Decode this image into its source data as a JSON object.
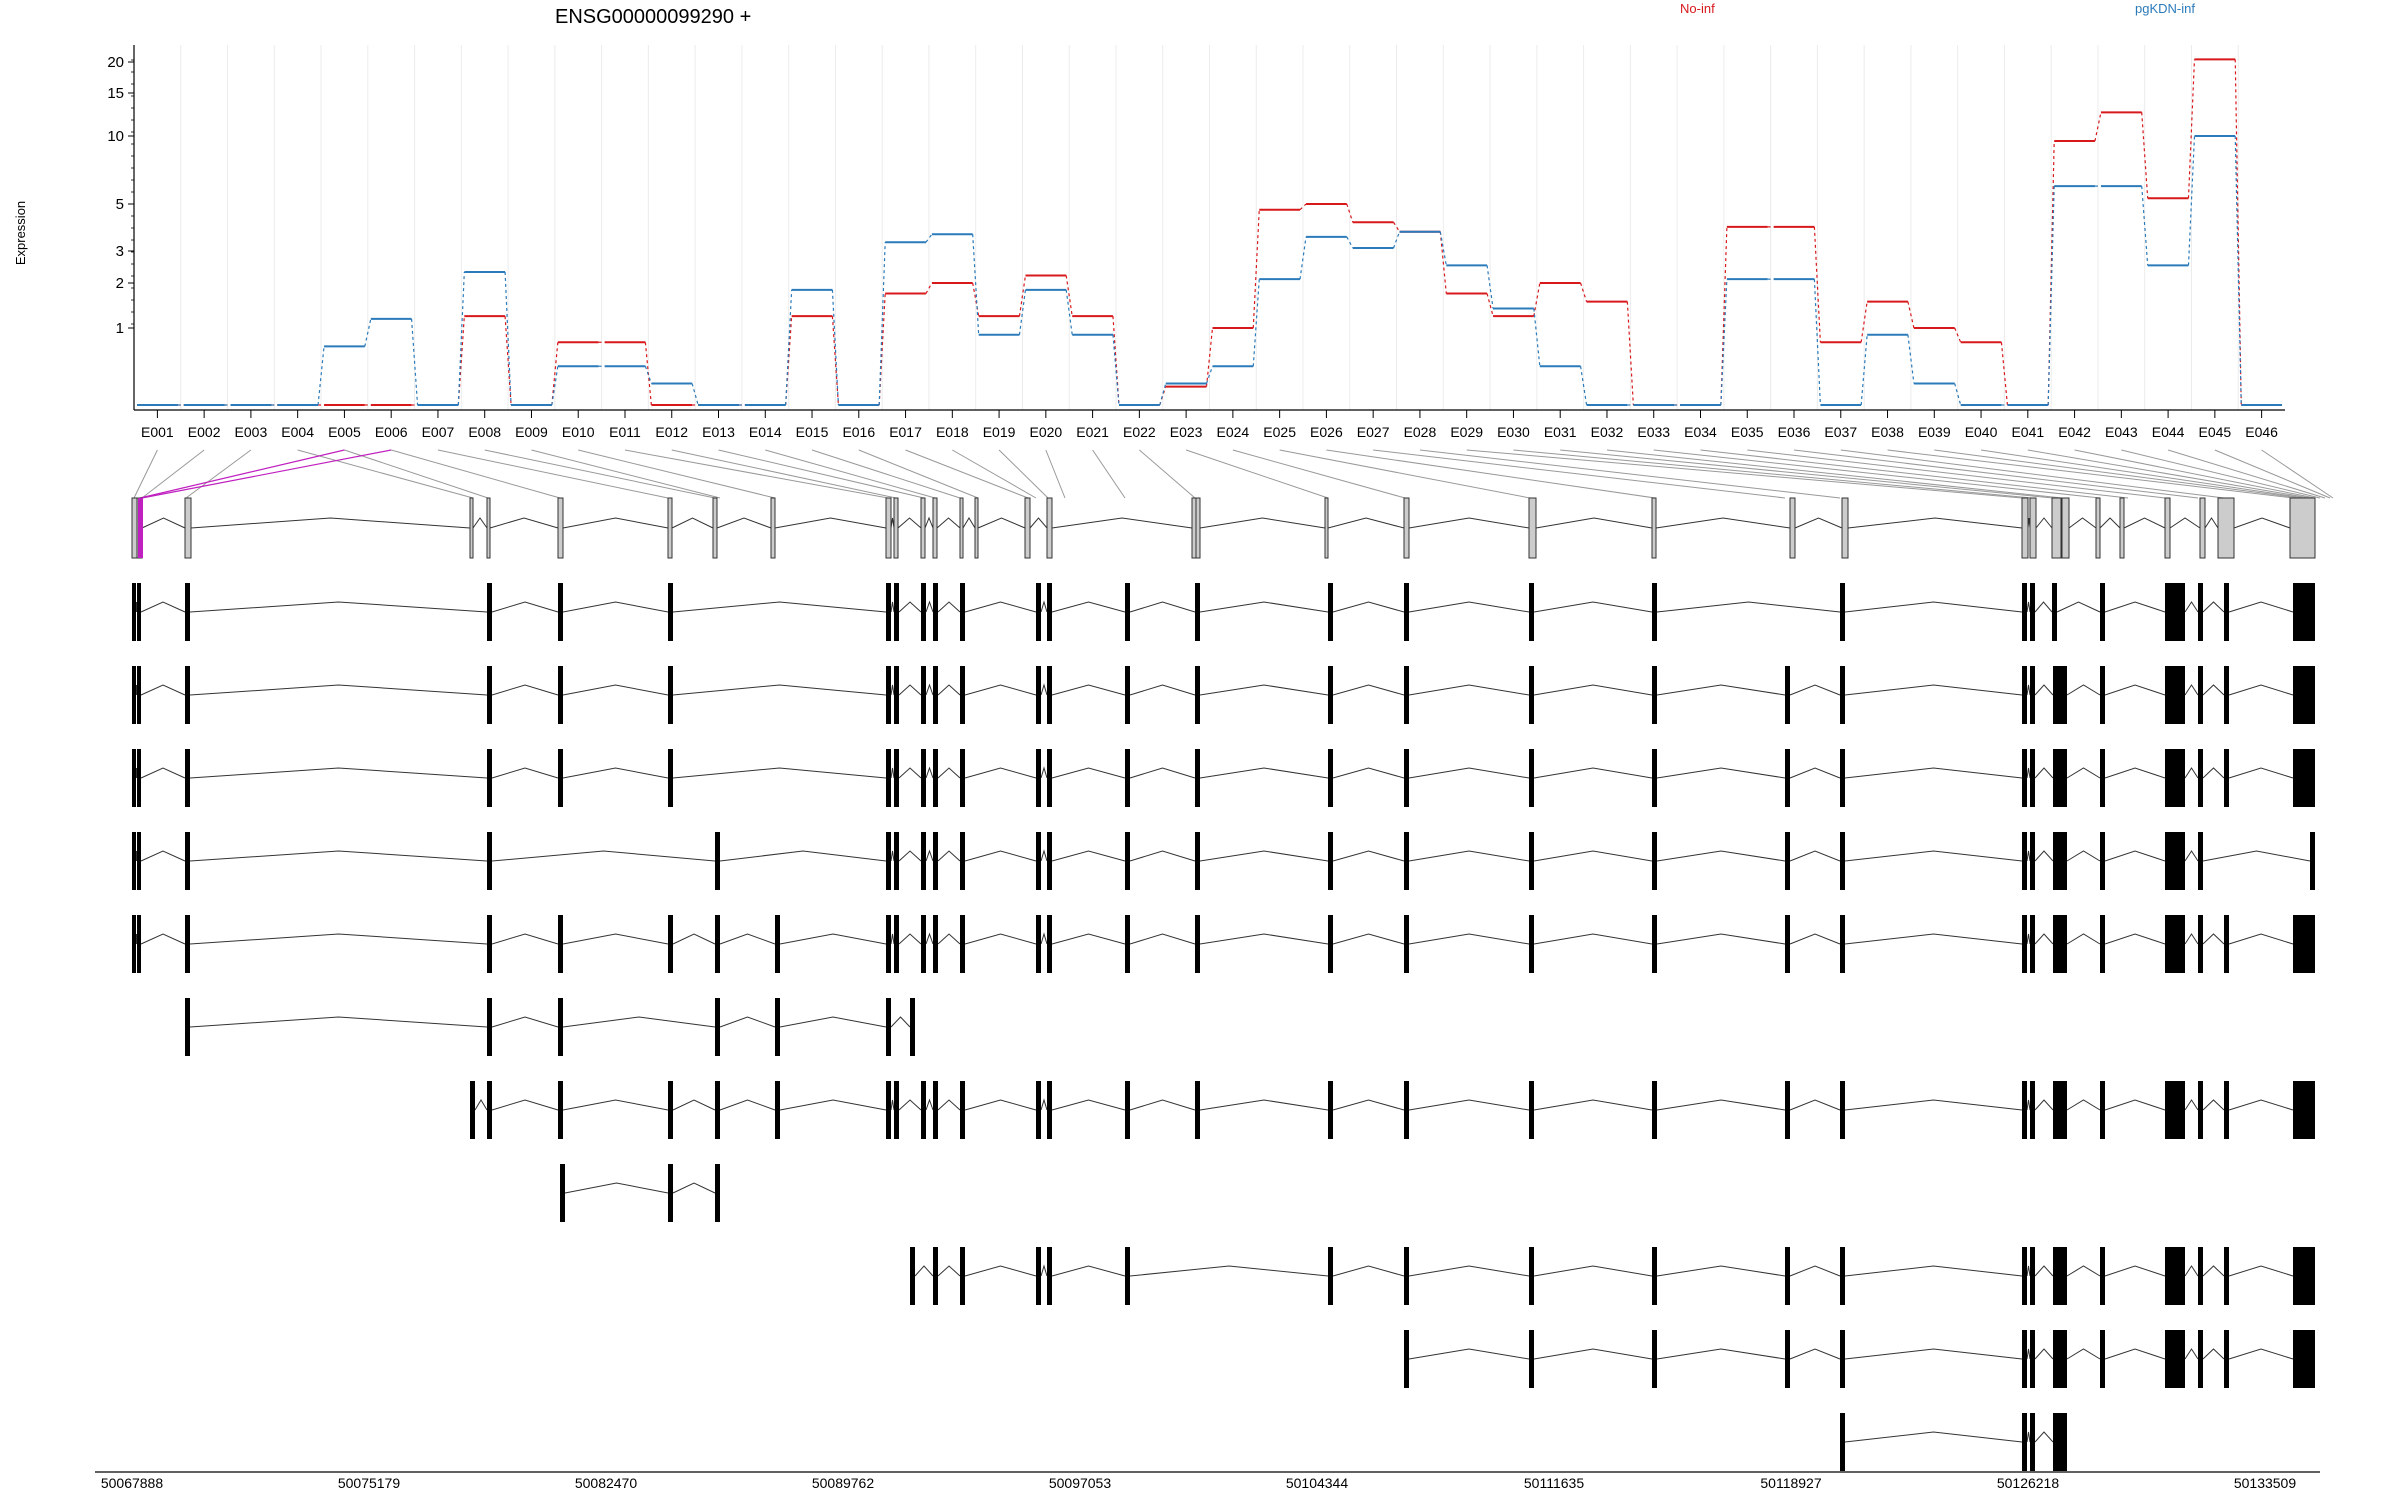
{
  "chart_data": {
    "type": "line",
    "title": "ENSG00000099290 +",
    "ylabel": "Expression",
    "y_scale": "log",
    "y_ticks": [
      1,
      2,
      3,
      5,
      10,
      15,
      20
    ],
    "grid": true,
    "legend_placement": "top-right",
    "categories": [
      "E001",
      "E002",
      "E003",
      "E004",
      "E005",
      "E006",
      "E007",
      "E008",
      "E009",
      "E010",
      "E011",
      "E012",
      "E013",
      "E014",
      "E015",
      "E016",
      "E017",
      "E018",
      "E019",
      "E020",
      "E021",
      "E022",
      "E023",
      "E024",
      "E025",
      "E026",
      "E027",
      "E028",
      "E029",
      "E030",
      "E031",
      "E032",
      "E033",
      "E034",
      "E035",
      "E036",
      "E037",
      "E038",
      "E039",
      "E040",
      "E041",
      "E042",
      "E043",
      "E044",
      "E045",
      "E046"
    ],
    "series": [
      {
        "name": "No-inf",
        "color": "#d7191c",
        "values": [
          0.3,
          0.3,
          0.3,
          0.3,
          0.3,
          0.3,
          0.3,
          1.2,
          0.3,
          0.8,
          0.8,
          0.3,
          0.3,
          0.3,
          1.2,
          0.3,
          1.7,
          2.0,
          1.2,
          2.2,
          1.2,
          0.3,
          0.4,
          1.0,
          4.7,
          5.0,
          4.1,
          3.7,
          1.7,
          1.2,
          2.0,
          1.5,
          0.3,
          0.3,
          3.9,
          3.9,
          0.8,
          1.5,
          1.0,
          0.8,
          0.3,
          9.5,
          12.5,
          5.3,
          20.5,
          0.3
        ]
      },
      {
        "name": "pgKDN-inf",
        "color": "#2b7bba",
        "values": [
          0.3,
          0.3,
          0.3,
          0.3,
          0.75,
          1.15,
          0.3,
          2.3,
          0.3,
          0.55,
          0.55,
          0.42,
          0.3,
          0.3,
          1.8,
          0.3,
          3.3,
          3.6,
          0.9,
          1.8,
          0.9,
          0.3,
          0.42,
          0.55,
          2.1,
          3.5,
          3.1,
          3.7,
          2.5,
          1.35,
          0.55,
          0.3,
          0.3,
          0.3,
          2.1,
          2.1,
          0.3,
          0.9,
          0.42,
          0.3,
          0.3,
          6.0,
          6.0,
          2.5,
          10.0,
          0.3
        ]
      }
    ],
    "genomic_axis_labels": [
      "50067888",
      "50075179",
      "50082470",
      "50089762",
      "50097053",
      "50104344",
      "50111635",
      "50118927",
      "50126218",
      "50133509"
    ],
    "transcript_count": 11
  }
}
